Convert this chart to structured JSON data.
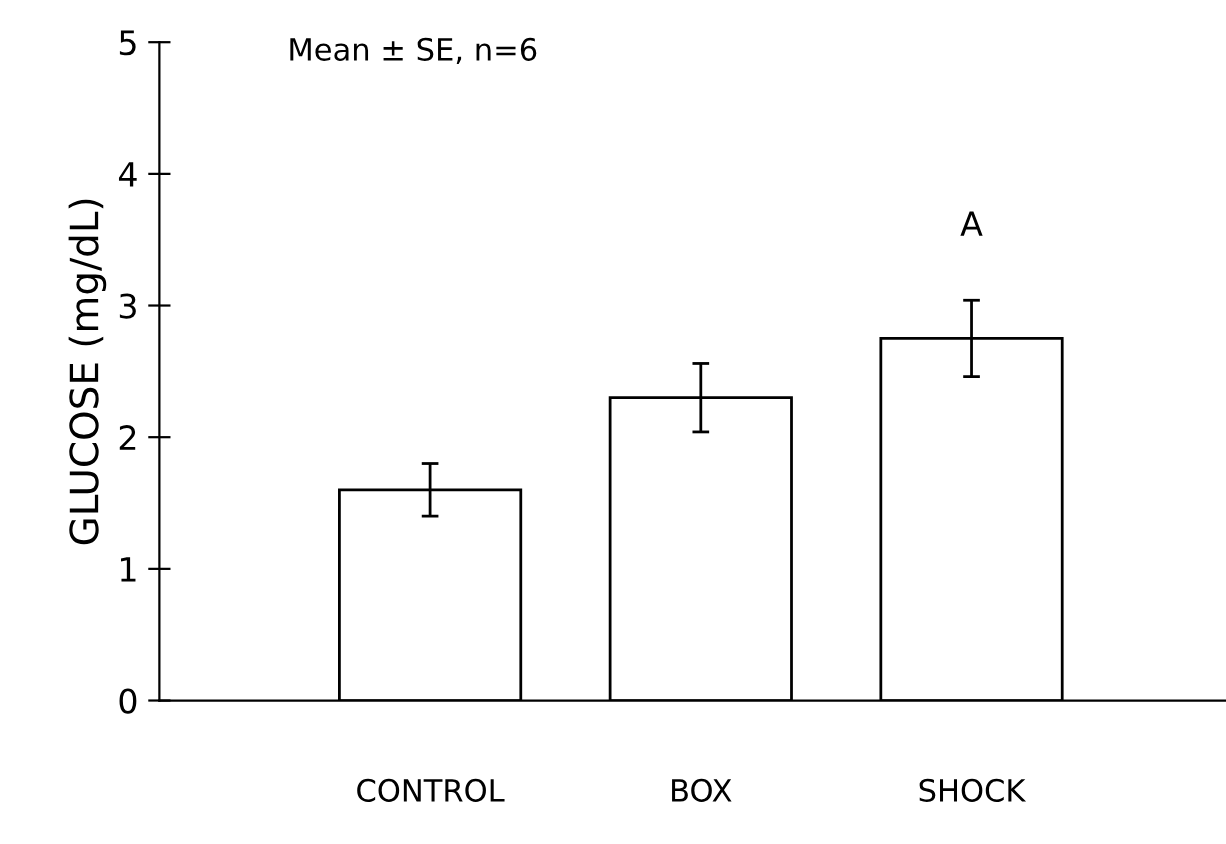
{
  "chart_data": {
    "type": "bar",
    "ylabel": "GLUCOSE (mg/dL)",
    "categories": [
      "CONTROL",
      "BOX",
      "SHOCK"
    ],
    "values": [
      1.6,
      2.3,
      2.75
    ],
    "errors": [
      0.2,
      0.26,
      0.29
    ],
    "color": "#ffffff",
    "ylim": [
      0,
      5
    ],
    "yticks": [
      0,
      1,
      2,
      3,
      4,
      5
    ],
    "grid": false,
    "annotations": [
      "Mean ± SE, n=6",
      "A"
    ]
  }
}
